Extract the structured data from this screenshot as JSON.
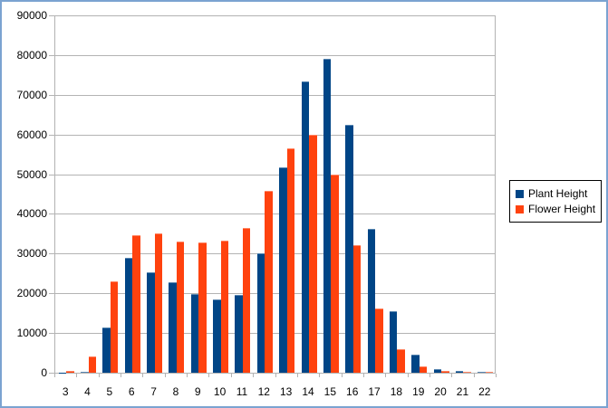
{
  "chart_data": {
    "type": "bar",
    "title": "",
    "xlabel": "",
    "ylabel": "",
    "categories": [
      "3",
      "4",
      "5",
      "6",
      "7",
      "8",
      "9",
      "10",
      "11",
      "12",
      "13",
      "14",
      "15",
      "16",
      "17",
      "18",
      "19",
      "20",
      "21",
      "22"
    ],
    "series": [
      {
        "name": "Plant Height",
        "color": "#004586",
        "values": [
          100,
          150,
          11500,
          28900,
          25400,
          22800,
          19800,
          18400,
          19500,
          30000,
          51800,
          73400,
          79100,
          62400,
          36300,
          15500,
          4500,
          1000,
          400,
          200
        ]
      },
      {
        "name": "Flower Height",
        "color": "#FF420E",
        "values": [
          400,
          4000,
          23100,
          34700,
          35000,
          33000,
          32800,
          33300,
          36500,
          45700,
          56600,
          60000,
          49800,
          32100,
          16200,
          6000,
          1600,
          400,
          200,
          150
        ]
      }
    ],
    "ylim": [
      0,
      90000
    ],
    "yticks": [
      0,
      10000,
      20000,
      30000,
      40000,
      50000,
      60000,
      70000,
      80000,
      90000
    ],
    "grid": true,
    "legend_position": "right"
  },
  "colors": {
    "axis": "#b3b3b3",
    "grid": "#b3b3b3",
    "frame": "#7ba3d1",
    "background": "#ffffff",
    "text": "#000000"
  }
}
